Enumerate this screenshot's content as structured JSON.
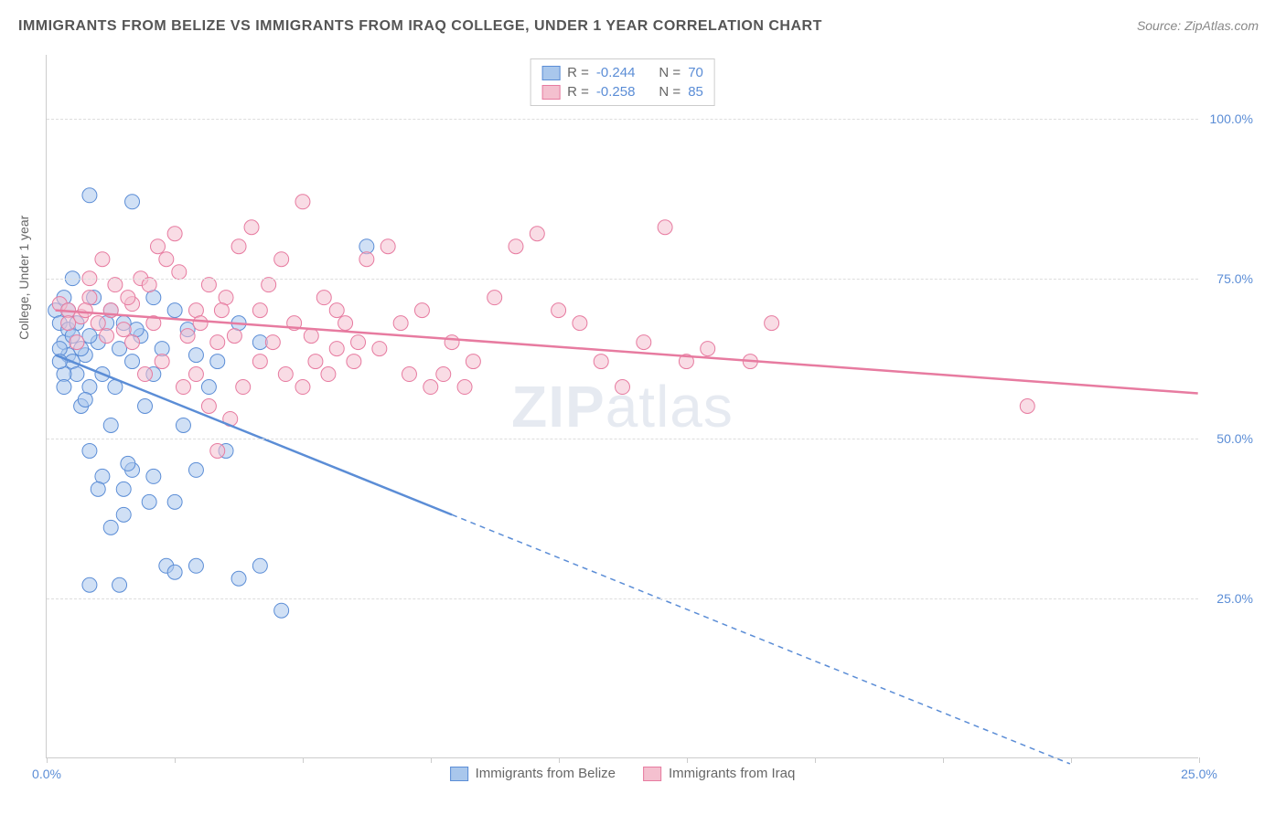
{
  "title": "IMMIGRANTS FROM BELIZE VS IMMIGRANTS FROM IRAQ COLLEGE, UNDER 1 YEAR CORRELATION CHART",
  "source": "Source: ZipAtlas.com",
  "ylabel": "College, Under 1 year",
  "watermark_bold": "ZIP",
  "watermark_light": "atlas",
  "chart": {
    "type": "scatter",
    "xlim": [
      0,
      27
    ],
    "ylim": [
      0,
      110
    ],
    "yticks": [
      {
        "v": 25,
        "label": "25.0%"
      },
      {
        "v": 50,
        "label": "50.0%"
      },
      {
        "v": 75,
        "label": "75.0%"
      },
      {
        "v": 100,
        "label": "100.0%"
      }
    ],
    "xticks": [
      0,
      3,
      6,
      9,
      12,
      15,
      18,
      21,
      24,
      27
    ],
    "xlabel_first": "0.0%",
    "xlabel_last": "25.0%",
    "background_color": "#ffffff",
    "grid_color": "#dddddd",
    "axis_color": "#cccccc",
    "marker_radius": 8,
    "marker_opacity": 0.55,
    "series": [
      {
        "name": "Immigrants from Belize",
        "color_fill": "#a9c7ec",
        "color_stroke": "#5b8dd6",
        "r_value": "-0.244",
        "n_value": "70",
        "regression": {
          "x1": 0.2,
          "y1": 63,
          "x2": 9.5,
          "y2": 38,
          "x2_dash": 24,
          "y2_dash": -1,
          "width": 2.5
        },
        "points": [
          [
            0.2,
            70
          ],
          [
            0.3,
            68
          ],
          [
            0.4,
            65
          ],
          [
            0.5,
            67
          ],
          [
            0.5,
            63
          ],
          [
            0.6,
            62
          ],
          [
            0.7,
            60
          ],
          [
            0.4,
            72
          ],
          [
            1.0,
            88
          ],
          [
            2.0,
            87
          ],
          [
            1.5,
            70
          ],
          [
            1.2,
            65
          ],
          [
            1.8,
            68
          ],
          [
            2.2,
            66
          ],
          [
            2.5,
            60
          ],
          [
            1.0,
            58
          ],
          [
            0.8,
            55
          ],
          [
            1.5,
            52
          ],
          [
            2.0,
            45
          ],
          [
            2.5,
            44
          ],
          [
            3.0,
            40
          ],
          [
            1.8,
            38
          ],
          [
            1.0,
            48
          ],
          [
            1.3,
            44
          ],
          [
            2.8,
            30
          ],
          [
            3.0,
            29
          ],
          [
            3.5,
            30
          ],
          [
            5.0,
            30
          ],
          [
            4.5,
            28
          ],
          [
            5.5,
            23
          ],
          [
            0.6,
            75
          ],
          [
            0.3,
            64
          ],
          [
            3.5,
            63
          ],
          [
            4.0,
            62
          ],
          [
            4.5,
            68
          ],
          [
            5.0,
            65
          ],
          [
            2.5,
            72
          ],
          [
            3.0,
            70
          ],
          [
            3.8,
            58
          ],
          [
            1.2,
            42
          ],
          [
            7.5,
            80
          ],
          [
            3.2,
            52
          ],
          [
            2.0,
            62
          ],
          [
            2.3,
            55
          ],
          [
            1.6,
            58
          ],
          [
            0.9,
            63
          ],
          [
            0.4,
            60
          ],
          [
            0.7,
            68
          ],
          [
            1.1,
            72
          ],
          [
            1.4,
            68
          ],
          [
            0.5,
            70
          ],
          [
            0.8,
            64
          ],
          [
            1.0,
            66
          ],
          [
            1.7,
            64
          ],
          [
            2.1,
            67
          ],
          [
            0.6,
            66
          ],
          [
            0.3,
            62
          ],
          [
            0.4,
            58
          ],
          [
            0.9,
            56
          ],
          [
            1.3,
            60
          ],
          [
            1.9,
            46
          ],
          [
            2.4,
            40
          ],
          [
            1.5,
            36
          ],
          [
            1.8,
            42
          ],
          [
            1.0,
            27
          ],
          [
            1.7,
            27
          ],
          [
            3.5,
            45
          ],
          [
            4.2,
            48
          ],
          [
            2.7,
            64
          ],
          [
            3.3,
            67
          ]
        ]
      },
      {
        "name": "Immigrants from Iraq",
        "color_fill": "#f4c0cf",
        "color_stroke": "#e77ba0",
        "r_value": "-0.258",
        "n_value": "85",
        "regression": {
          "x1": 0.2,
          "y1": 70,
          "x2": 27,
          "y2": 57,
          "width": 2.5
        },
        "points": [
          [
            0.3,
            71
          ],
          [
            0.5,
            70
          ],
          [
            0.8,
            69
          ],
          [
            1.0,
            72
          ],
          [
            1.2,
            68
          ],
          [
            1.5,
            70
          ],
          [
            1.8,
            67
          ],
          [
            2.0,
            71
          ],
          [
            2.2,
            75
          ],
          [
            2.5,
            68
          ],
          [
            2.8,
            78
          ],
          [
            3.0,
            82
          ],
          [
            3.5,
            70
          ],
          [
            3.8,
            74
          ],
          [
            4.0,
            65
          ],
          [
            4.2,
            72
          ],
          [
            4.5,
            80
          ],
          [
            4.8,
            83
          ],
          [
            5.0,
            70
          ],
          [
            5.5,
            78
          ],
          [
            6.0,
            87
          ],
          [
            6.5,
            72
          ],
          [
            6.8,
            64
          ],
          [
            2.0,
            65
          ],
          [
            2.3,
            60
          ],
          [
            2.7,
            62
          ],
          [
            3.2,
            58
          ],
          [
            3.5,
            60
          ],
          [
            3.8,
            55
          ],
          [
            4.0,
            48
          ],
          [
            4.3,
            53
          ],
          [
            4.6,
            58
          ],
          [
            5.0,
            62
          ],
          [
            5.3,
            65
          ],
          [
            5.6,
            60
          ],
          [
            6.0,
            58
          ],
          [
            6.3,
            62
          ],
          [
            6.8,
            70
          ],
          [
            7.0,
            68
          ],
          [
            7.3,
            65
          ],
          [
            7.5,
            78
          ],
          [
            8.0,
            80
          ],
          [
            8.5,
            60
          ],
          [
            9.0,
            58
          ],
          [
            9.5,
            65
          ],
          [
            10.0,
            62
          ],
          [
            10.5,
            72
          ],
          [
            11.0,
            80
          ],
          [
            11.5,
            82
          ],
          [
            12.0,
            70
          ],
          [
            12.5,
            68
          ],
          [
            13.0,
            62
          ],
          [
            13.5,
            58
          ],
          [
            14.0,
            65
          ],
          [
            14.5,
            83
          ],
          [
            15.0,
            62
          ],
          [
            15.5,
            64
          ],
          [
            16.5,
            62
          ],
          [
            17.0,
            68
          ],
          [
            23.0,
            55
          ],
          [
            1.0,
            75
          ],
          [
            1.3,
            78
          ],
          [
            1.6,
            74
          ],
          [
            1.9,
            72
          ],
          [
            2.4,
            74
          ],
          [
            0.5,
            68
          ],
          [
            0.7,
            65
          ],
          [
            0.9,
            70
          ],
          [
            1.4,
            66
          ],
          [
            3.3,
            66
          ],
          [
            3.6,
            68
          ],
          [
            4.1,
            70
          ],
          [
            4.4,
            66
          ],
          [
            5.2,
            74
          ],
          [
            5.8,
            68
          ],
          [
            6.2,
            66
          ],
          [
            6.6,
            60
          ],
          [
            7.2,
            62
          ],
          [
            7.8,
            64
          ],
          [
            8.3,
            68
          ],
          [
            8.8,
            70
          ],
          [
            9.3,
            60
          ],
          [
            9.8,
            58
          ],
          [
            2.6,
            80
          ],
          [
            3.1,
            76
          ]
        ]
      }
    ]
  },
  "legend_top_labels": {
    "r": "R =",
    "n": "N ="
  },
  "legend_bottom": [
    {
      "label": "Immigrants from Belize",
      "fill": "#a9c7ec",
      "stroke": "#5b8dd6"
    },
    {
      "label": "Immigrants from Iraq",
      "fill": "#f4c0cf",
      "stroke": "#e77ba0"
    }
  ]
}
